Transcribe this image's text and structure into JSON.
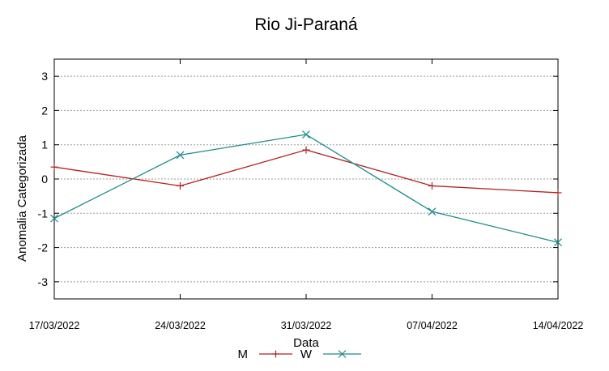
{
  "chart_data": {
    "type": "line",
    "title": "Rio Ji-Paraná",
    "xlabel": "Data",
    "ylabel": "Anomalia Categorizada",
    "categories": [
      "17/03/2022",
      "24/03/2022",
      "31/03/2022",
      "07/04/2022",
      "14/04/2022"
    ],
    "ylim": [
      -3.5,
      3.5
    ],
    "yticks": [
      "3",
      "2",
      "1",
      "0",
      "-1",
      "-2",
      "-3"
    ],
    "grid": true,
    "legend_position": "bottom-center",
    "series": [
      {
        "name": "M",
        "values": [
          0.35,
          -0.2,
          0.85,
          -0.2,
          -0.4
        ],
        "color": "#b22222",
        "marker": "plus"
      },
      {
        "name": "W",
        "values": [
          -1.15,
          0.7,
          1.3,
          -0.95,
          -1.85
        ],
        "color": "#1f8a8a",
        "marker": "cross"
      }
    ]
  }
}
